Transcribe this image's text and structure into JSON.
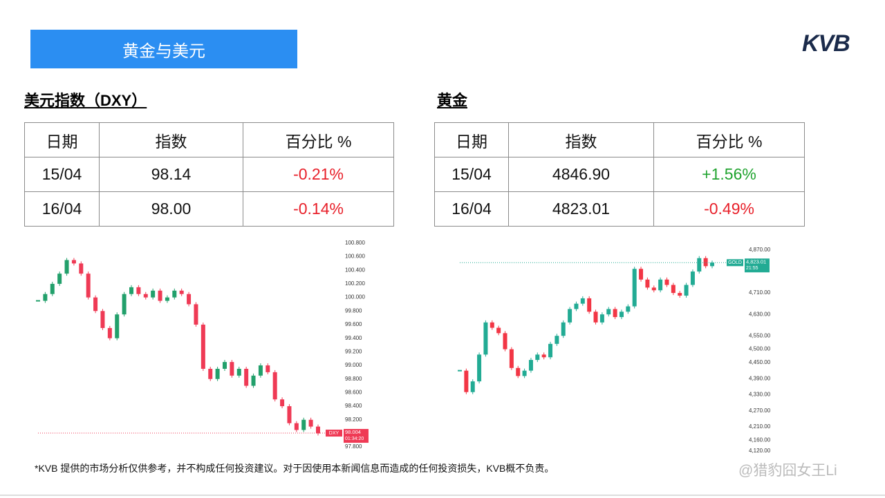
{
  "header": {
    "title": "黄金与美元",
    "logo": "KVB"
  },
  "sections": [
    {
      "heading": "美元指数（DXY）",
      "table": {
        "columns": [
          "日期",
          "指数",
          "百分比 %"
        ],
        "rows": [
          [
            "15/04",
            "98.14",
            "-0.21%"
          ],
          [
            "16/04",
            "98.00",
            "-0.14%"
          ]
        ],
        "change_colors": [
          "#e8202a",
          "#e8202a"
        ]
      }
    },
    {
      "heading": "黄金",
      "table": {
        "columns": [
          "日期",
          "指数",
          "百分比 %"
        ],
        "rows": [
          [
            "15/04",
            "4846.90",
            "+1.56%"
          ],
          [
            "16/04",
            "4823.01",
            "-0.49%"
          ]
        ],
        "change_colors": [
          "#1fa32e",
          "#e8202a"
        ]
      }
    }
  ],
  "chart_data": [
    {
      "type": "candlestick",
      "up_color": "#22a06b",
      "down_color": "#ef3a55",
      "values": [
        99.95,
        100.05,
        100.2,
        100.35,
        100.55,
        100.5,
        100.35,
        100.0,
        99.8,
        99.55,
        99.4,
        99.75,
        100.05,
        100.15,
        100.05,
        100.0,
        100.1,
        99.95,
        100.0,
        100.1,
        100.05,
        99.9,
        99.6,
        98.95,
        98.8,
        98.95,
        99.05,
        98.85,
        98.95,
        98.7,
        98.85,
        99.0,
        98.9,
        98.5,
        98.4,
        98.15,
        98.05,
        98.2,
        98.1,
        98.0
      ],
      "ylim": [
        97.72,
        100.87
      ],
      "yticks": [
        {
          "value": 100.8,
          "label": "100.800"
        },
        {
          "value": 100.6,
          "label": "100.600"
        },
        {
          "value": 100.4,
          "label": "100.400"
        },
        {
          "value": 100.2,
          "label": "100.200"
        },
        {
          "value": 100.0,
          "label": "100.000"
        },
        {
          "value": 99.8,
          "label": "99.800"
        },
        {
          "value": 99.6,
          "label": "99.600"
        },
        {
          "value": 99.4,
          "label": "99.400"
        },
        {
          "value": 99.2,
          "label": "99.200"
        },
        {
          "value": 99.0,
          "label": "99.000"
        },
        {
          "value": 98.8,
          "label": "98.800"
        },
        {
          "value": 98.6,
          "label": "98.600"
        },
        {
          "value": 98.4,
          "label": "98.400"
        },
        {
          "value": 98.2,
          "label": "98.200"
        },
        {
          "value": 97.8,
          "label": "97.800"
        }
      ],
      "last": {
        "symbol": "DXY",
        "price": 98.004,
        "time": "01:34:20",
        "color": "#ef3a55"
      }
    },
    {
      "type": "candlestick",
      "up_color": "#22ab94",
      "down_color": "#f23645",
      "values": [
        4420,
        4340,
        4380,
        4480,
        4600,
        4580,
        4560,
        4500,
        4430,
        4400,
        4420,
        4460,
        4480,
        4470,
        4520,
        4550,
        4600,
        4650,
        4670,
        4690,
        4640,
        4600,
        4630,
        4650,
        4620,
        4640,
        4660,
        4800,
        4760,
        4730,
        4720,
        4760,
        4740,
        4710,
        4700,
        4740,
        4790,
        4840,
        4810,
        4823.01
      ],
      "ylim": [
        4102,
        4914
      ],
      "yticks": [
        {
          "value": 4870,
          "label": "4,870.00"
        },
        {
          "value": 4710,
          "label": "4,710.00"
        },
        {
          "value": 4630,
          "label": "4,630.00"
        },
        {
          "value": 4550,
          "label": "4,550.00"
        },
        {
          "value": 4500,
          "label": "4,500.00"
        },
        {
          "value": 4450,
          "label": "4,450.00"
        },
        {
          "value": 4390,
          "label": "4,390.00"
        },
        {
          "value": 4330,
          "label": "4,330.00"
        },
        {
          "value": 4270,
          "label": "4,270.00"
        },
        {
          "value": 4210,
          "label": "4,210.00"
        },
        {
          "value": 4160,
          "label": "4,160.00"
        },
        {
          "value": 4120,
          "label": "4,120.00"
        }
      ],
      "last": {
        "symbol": "GOLD",
        "price": {
          "value": 4823.01,
          "label": "4,823.01"
        },
        "time": "21:55",
        "color": "#22ab94"
      }
    }
  ],
  "disclaimer": "*KVB 提供的市场分析仅供参考，并不构成任何投资建议。对于因使用本新闻信息而造成的任何投资损失，KVB概不负责。",
  "watermark": "@猎豹囧女王Li"
}
